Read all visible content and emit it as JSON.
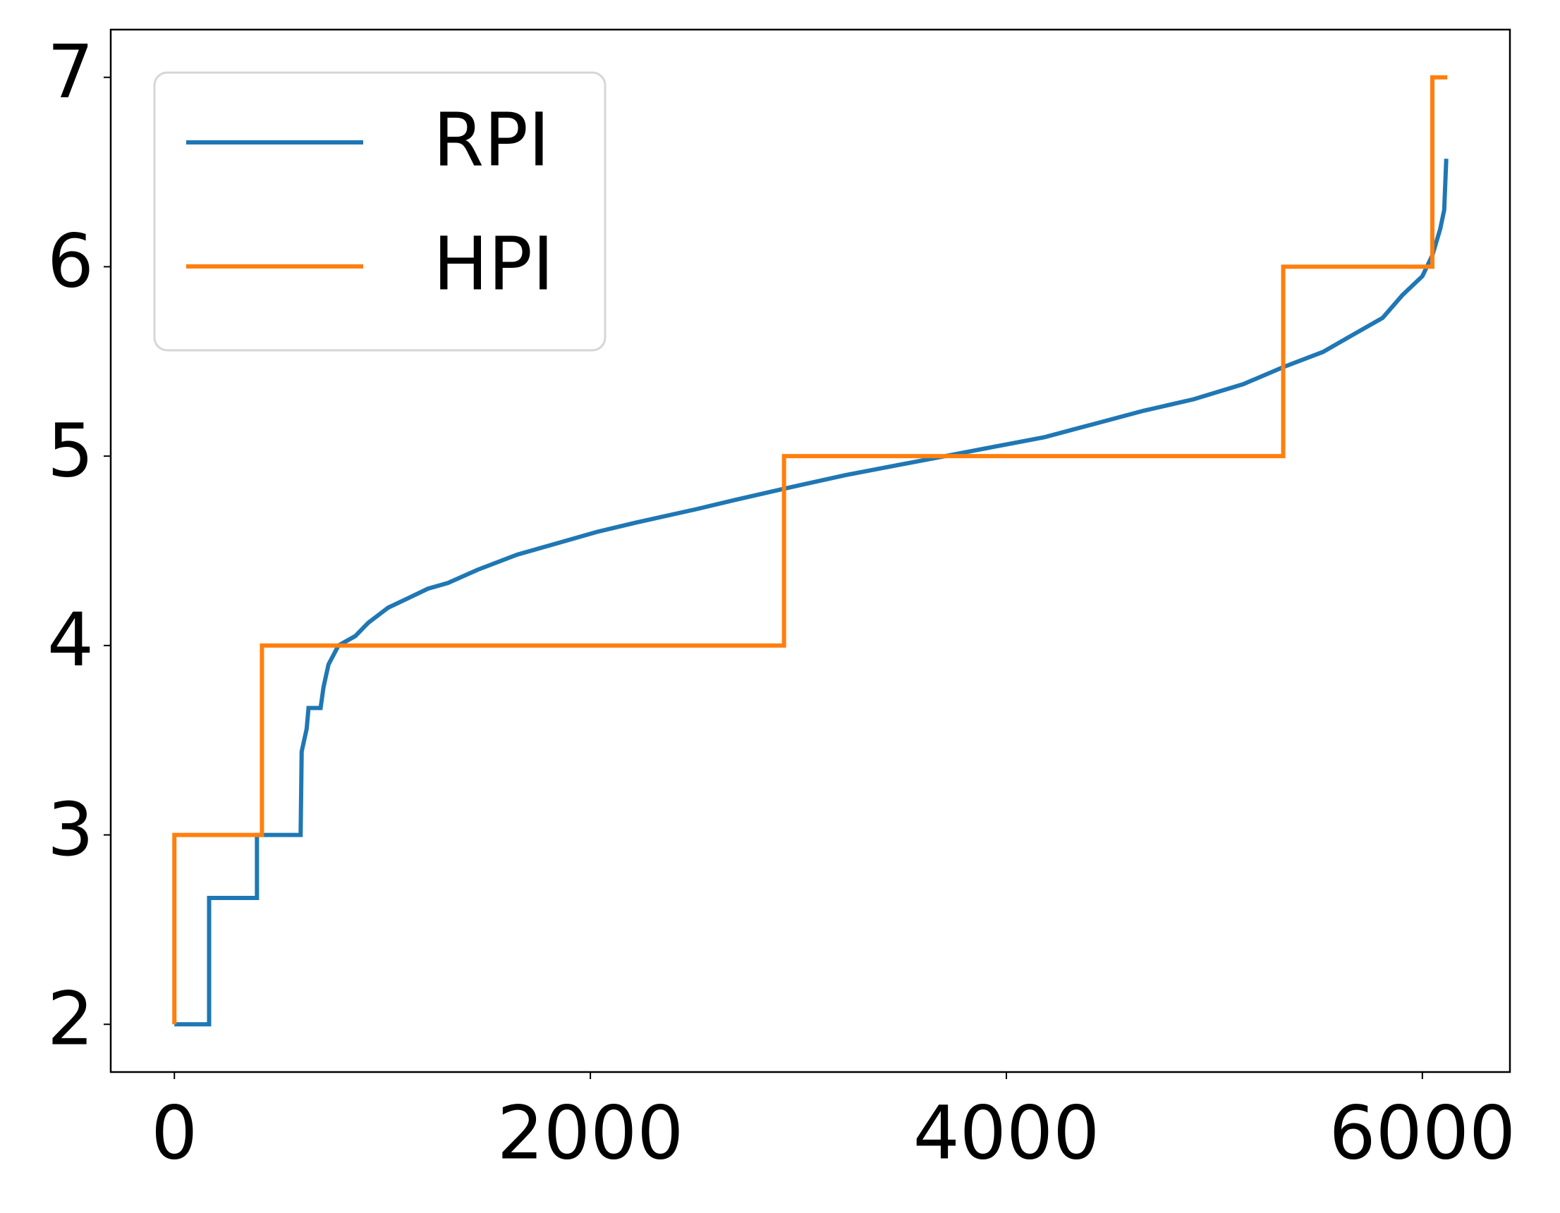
{
  "chart_data": {
    "type": "line",
    "series": [
      {
        "name": "RPI",
        "color": "#1f77b4",
        "x": [
          0,
          167,
          167,
          397,
          397,
          607,
          612,
          636,
          645,
          703,
          717,
          741,
          789,
          870,
          932,
          1028,
          1124,
          1219,
          1315,
          1458,
          1649,
          1841,
          2032,
          2223,
          2510,
          2701,
          2940,
          3227,
          3466,
          3705,
          3944,
          4183,
          4422,
          4661,
          4900,
          5139,
          5331,
          5522,
          5665,
          5809,
          5904,
          6000,
          6048,
          6086,
          6105,
          6115
        ],
        "values": [
          2,
          2,
          2.667,
          2.667,
          3,
          3,
          3.44,
          3.56,
          3.67,
          3.67,
          3.78,
          3.9,
          4.0,
          4.05,
          4.12,
          4.2,
          4.25,
          4.3,
          4.33,
          4.4,
          4.48,
          4.54,
          4.6,
          4.65,
          4.72,
          4.77,
          4.83,
          4.9,
          4.95,
          5.0,
          5.05,
          5.1,
          5.17,
          5.24,
          5.3,
          5.38,
          5.47,
          5.55,
          5.64,
          5.73,
          5.85,
          5.95,
          6.06,
          6.2,
          6.3,
          6.57
        ]
      },
      {
        "name": "HPI",
        "color": "#ff7f0e",
        "x": [
          0,
          0,
          421,
          421,
          2931,
          2931,
          5331,
          5331,
          6048,
          6048,
          6120
        ],
        "values": [
          2,
          3,
          3,
          4,
          4,
          5,
          5,
          6,
          6,
          7,
          7
        ]
      }
    ],
    "xlim": [
      -306,
      6421
    ],
    "xticks": [
      0,
      2000,
      4000,
      6000
    ],
    "ylim": [
      1.748,
      7.252
    ],
    "yticks": [
      2,
      3,
      4,
      5,
      6,
      7
    ],
    "legend": "upper left",
    "grid": false
  }
}
